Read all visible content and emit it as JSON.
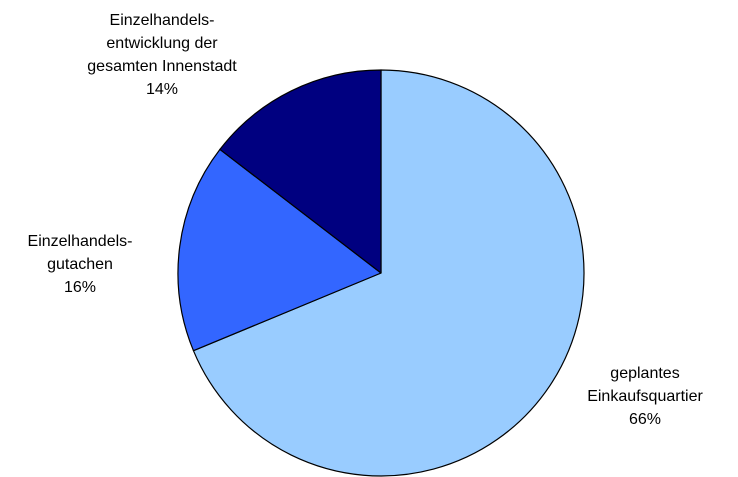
{
  "chart_data": {
    "type": "pie",
    "title": "",
    "slices": [
      {
        "label_lines": [
          "geplantes",
          "Einkaufsquartier"
        ],
        "value_label": "66%",
        "value": 66,
        "color": "#99ccff"
      },
      {
        "label_lines": [
          "Einzelhandels-",
          "gutachen"
        ],
        "value_label": "16%",
        "value": 16,
        "color": "#3366ff"
      },
      {
        "label_lines": [
          "Einzelhandels-",
          "entwicklung der",
          "gesamten Innenstadt"
        ],
        "value_label": "14%",
        "value": 14,
        "color": "#000080"
      }
    ],
    "start_angle_deg": 0,
    "direction": "clockwise",
    "legend": "none"
  }
}
